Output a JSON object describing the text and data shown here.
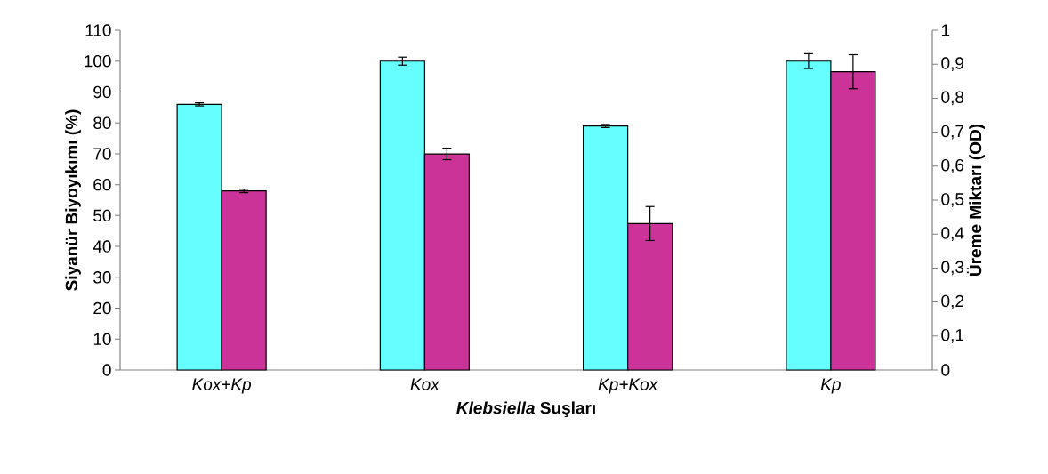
{
  "chart_data": {
    "type": "bar",
    "xlabel": "*Klebsiella* Suşları",
    "ylabel": "Siyanür Biyoyıkımı (%)",
    "y2label": "Üreme Miktarı (OD)",
    "categories": [
      "Kox+Kp",
      "Kox",
      "Kp+Kox",
      "Kp"
    ],
    "series": [
      {
        "color": "#66ffff",
        "values": [
          86,
          100,
          79,
          100
        ],
        "errors": [
          0.5,
          1.3,
          0.5,
          2.4
        ]
      },
      {
        "color": "#cc3399",
        "axis": "y2",
        "values": [
          0.527,
          0.636,
          0.431,
          0.878
        ],
        "errors": [
          0.005,
          0.017,
          0.05,
          0.05
        ]
      }
    ],
    "ylim": [
      0,
      110
    ],
    "yticks": [
      0,
      10,
      20,
      30,
      40,
      50,
      60,
      70,
      80,
      90,
      100,
      110
    ],
    "y2lim": [
      0,
      1
    ],
    "y2ticks": [
      0,
      {
        "value": 0.1,
        "label": "0,1"
      },
      {
        "value": 0.2,
        "label": "0,2"
      },
      {
        "value": 0.3,
        "label": "0,3"
      },
      {
        "value": 0.4,
        "label": "0,4"
      },
      {
        "value": 0.5,
        "label": "0,5"
      },
      {
        "value": 0.6,
        "label": "0,6"
      },
      {
        "value": 0.7,
        "label": "0,7"
      },
      {
        "value": 0.8,
        "label": "0,8"
      },
      {
        "value": 0.9,
        "label": "0,9"
      },
      1
    ]
  }
}
